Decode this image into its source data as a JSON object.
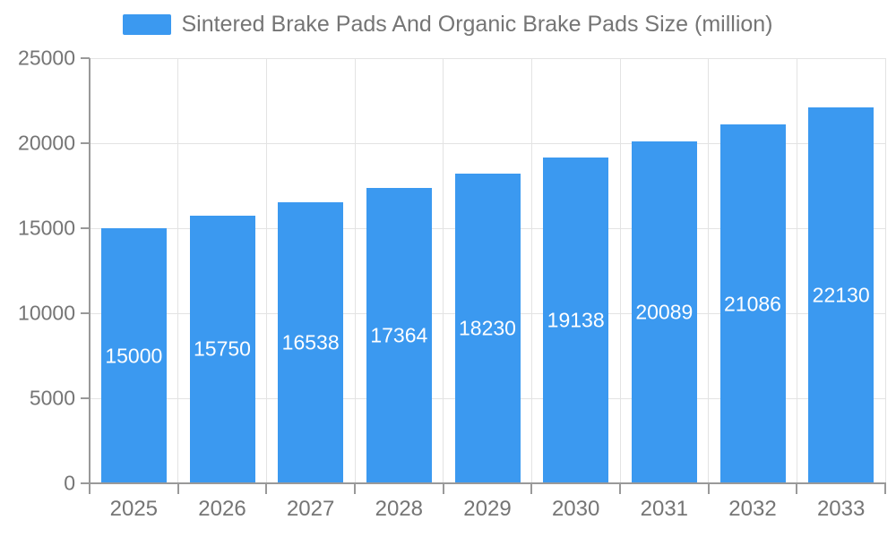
{
  "legend": {
    "label": "Sintered Brake Pads And Organic Brake Pads Size (million)"
  },
  "colors": {
    "bar": "#3B99F0",
    "value_label": "#FFFFFF",
    "axis_line": "#999999",
    "grid_line": "#E3E3E3",
    "tick_text": "#757575",
    "background": "#FFFFFF"
  },
  "chart_data": {
    "type": "bar",
    "title": "Sintered Brake Pads And Organic Brake Pads Size (million)",
    "categories": [
      "2025",
      "2026",
      "2027",
      "2028",
      "2029",
      "2030",
      "2031",
      "2032",
      "2033"
    ],
    "values": [
      15000,
      15750,
      16538,
      17364,
      18230,
      19138,
      20089,
      21086,
      22130
    ],
    "series": [
      {
        "name": "Sintered Brake Pads And Organic Brake Pads Size (million)",
        "values": [
          15000,
          15750,
          16538,
          17364,
          18230,
          19138,
          20089,
          21086,
          22130
        ]
      }
    ],
    "xlabel": "",
    "ylabel": "",
    "ylim": [
      0,
      25000
    ],
    "yticks": [
      0,
      5000,
      10000,
      15000,
      20000,
      25000
    ],
    "grid": true,
    "legend_position": "top-center",
    "bar_label_position": "inside-middle"
  }
}
